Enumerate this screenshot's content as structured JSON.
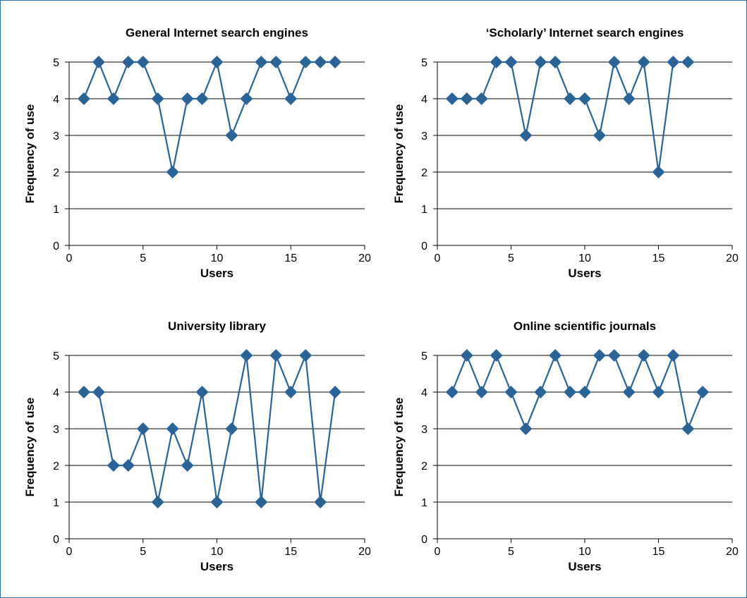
{
  "chart_data": [
    {
      "type": "line",
      "title": "General Internet search engines",
      "xlabel": "Users",
      "ylabel": "Frequency of use",
      "xlim": [
        0,
        20
      ],
      "ylim": [
        0,
        5
      ],
      "xticks": [
        "0",
        "5",
        "10",
        "15",
        "20"
      ],
      "yticks": [
        "0",
        "1",
        "2",
        "3",
        "4",
        "5"
      ],
      "grid": true,
      "color": "#2a6496",
      "marker": "diamond",
      "x": [
        1,
        2,
        3,
        4,
        5,
        6,
        7,
        8,
        9,
        10,
        11,
        12,
        13,
        14,
        15,
        16,
        17,
        18
      ],
      "values": [
        4,
        5,
        4,
        5,
        5,
        4,
        2,
        4,
        4,
        5,
        3,
        4,
        5,
        5,
        4,
        5,
        5,
        5
      ]
    },
    {
      "type": "line",
      "title": "‘Scholarly’ Internet search engines",
      "xlabel": "Users",
      "ylabel": "Frequency of use",
      "xlim": [
        0,
        20
      ],
      "ylim": [
        0,
        5
      ],
      "xticks": [
        "0",
        "5",
        "10",
        "15",
        "20"
      ],
      "yticks": [
        "0",
        "1",
        "2",
        "3",
        "4",
        "5"
      ],
      "grid": true,
      "color": "#2a6496",
      "marker": "diamond",
      "x": [
        1,
        2,
        3,
        4,
        5,
        6,
        7,
        8,
        9,
        10,
        11,
        12,
        13,
        14,
        15,
        16,
        17
      ],
      "values": [
        4,
        4,
        4,
        5,
        5,
        3,
        5,
        5,
        4,
        4,
        3,
        5,
        4,
        5,
        2,
        5,
        5
      ]
    },
    {
      "type": "line",
      "title": "University library",
      "xlabel": "Users",
      "ylabel": "Frequency of use",
      "xlim": [
        0,
        20
      ],
      "ylim": [
        0,
        5
      ],
      "xticks": [
        "0",
        "5",
        "10",
        "15",
        "20"
      ],
      "yticks": [
        "0",
        "1",
        "2",
        "3",
        "4",
        "5"
      ],
      "grid": true,
      "color": "#2a6496",
      "marker": "diamond",
      "x": [
        1,
        2,
        3,
        4,
        5,
        6,
        7,
        8,
        9,
        10,
        11,
        12,
        13,
        14,
        15,
        16,
        17,
        18
      ],
      "values": [
        4,
        4,
        2,
        2,
        3,
        1,
        3,
        2,
        4,
        1,
        3,
        5,
        1,
        5,
        4,
        5,
        1,
        4
      ]
    },
    {
      "type": "line",
      "title": "Online scientific journals",
      "xlabel": "Users",
      "ylabel": "Frequency of use",
      "xlim": [
        0,
        20
      ],
      "ylim": [
        0,
        5
      ],
      "xticks": [
        "0",
        "5",
        "10",
        "15",
        "20"
      ],
      "yticks": [
        "0",
        "1",
        "2",
        "3",
        "4",
        "5"
      ],
      "grid": true,
      "color": "#2a6496",
      "marker": "diamond",
      "x": [
        1,
        2,
        3,
        4,
        5,
        6,
        7,
        8,
        9,
        10,
        11,
        12,
        13,
        14,
        15,
        16,
        17,
        18
      ],
      "values": [
        4,
        5,
        4,
        5,
        4,
        3,
        4,
        5,
        4,
        4,
        5,
        5,
        4,
        5,
        4,
        5,
        3,
        4
      ]
    }
  ]
}
